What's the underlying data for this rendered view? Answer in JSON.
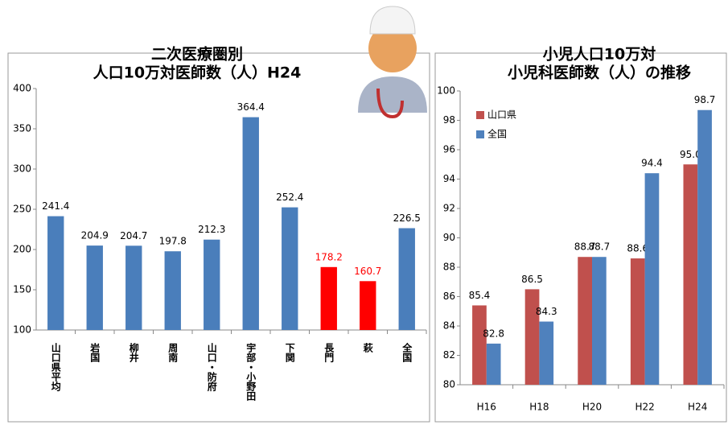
{
  "chart_data": [
    {
      "type": "bar",
      "title": [
        "二次医療圏別",
        "人口10万対医師数（人）H24"
      ],
      "categories": [
        "山口県平均",
        "岩国",
        "柳井",
        "周南",
        "山口・防府",
        "宇部・小野田",
        "下関",
        "長門",
        "萩",
        "全国"
      ],
      "values": [
        241.4,
        204.9,
        204.7,
        197.8,
        212.3,
        364.4,
        252.4,
        178.2,
        160.7,
        226.5
      ],
      "colors": [
        "#4a7ebb",
        "#4a7ebb",
        "#4a7ebb",
        "#4a7ebb",
        "#4a7ebb",
        "#4a7ebb",
        "#4a7ebb",
        "#ff0000",
        "#ff0000",
        "#4a7ebb"
      ],
      "ylim": [
        100,
        400
      ],
      "yticks": [
        100,
        150,
        200,
        250,
        300,
        350,
        400
      ],
      "grid": false
    },
    {
      "type": "bar",
      "title": [
        "小児人口10万対",
        "小児科医師数（人）の推移"
      ],
      "categories": [
        "H16",
        "H18",
        "H20",
        "H22",
        "H24"
      ],
      "series": [
        {
          "name": "山口県",
          "color": "#c0504d",
          "values": [
            85.4,
            86.5,
            88.7,
            88.6,
            95.0
          ],
          "value_labels": [
            "85.4",
            "86.5",
            "88.7",
            "88.6",
            "95.0"
          ]
        },
        {
          "name": "全国",
          "color": "#4f81bd",
          "values": [
            82.8,
            84.3,
            88.7,
            94.4,
            98.7
          ]
        }
      ],
      "ylim": [
        80,
        100
      ],
      "yticks": [
        80,
        82,
        84,
        86,
        88,
        90,
        92,
        94,
        96,
        98,
        100
      ],
      "legend": "top-left",
      "grid": false
    }
  ]
}
